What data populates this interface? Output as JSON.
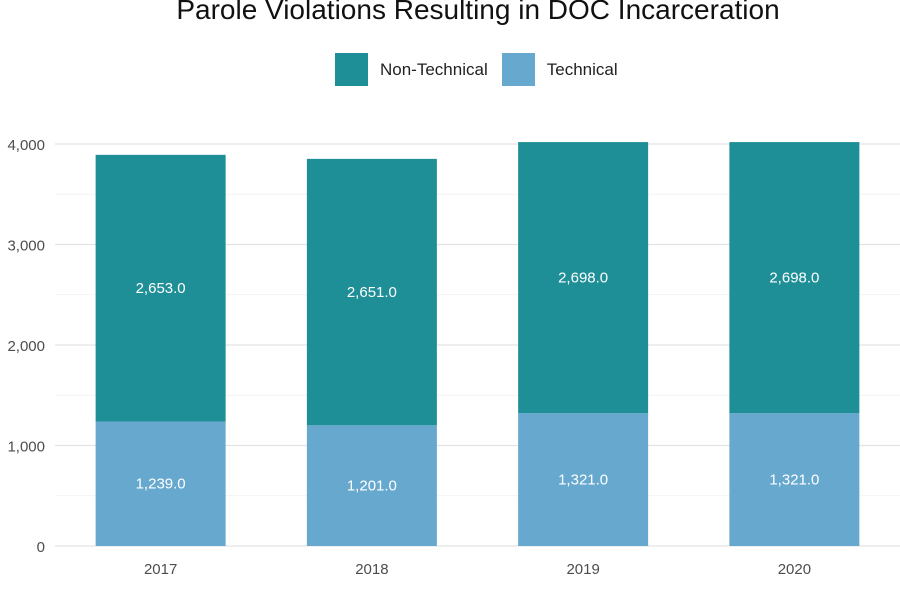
{
  "chart_data": {
    "type": "bar",
    "stacked": true,
    "title": "Parole Violations Resulting in DOC Incarceration",
    "categories": [
      "2017",
      "2018",
      "2019",
      "2020"
    ],
    "series": [
      {
        "name": "Technical",
        "values": [
          1239,
          1201,
          1321,
          1321
        ],
        "labels": [
          "1,239.0",
          "1,201.0",
          "1,321.0",
          "1,321.0"
        ],
        "color": "#67a8cf"
      },
      {
        "name": "Non-Technical",
        "values": [
          2653,
          2651,
          2698,
          2698
        ],
        "labels": [
          "2,653.0",
          "2,651.0",
          "2,698.0",
          "2,698.0"
        ],
        "color": "#1e8f97"
      }
    ],
    "legend_order": [
      "Non-Technical",
      "Technical"
    ],
    "legend_position": "top",
    "yticks": [
      0,
      1000,
      2000,
      3000,
      4000
    ],
    "ytick_labels": [
      "0",
      "1,000",
      "2,000",
      "3,000",
      "4,000"
    ],
    "ylim": [
      0,
      4000
    ],
    "grid": true,
    "xlabel": "",
    "ylabel": ""
  }
}
